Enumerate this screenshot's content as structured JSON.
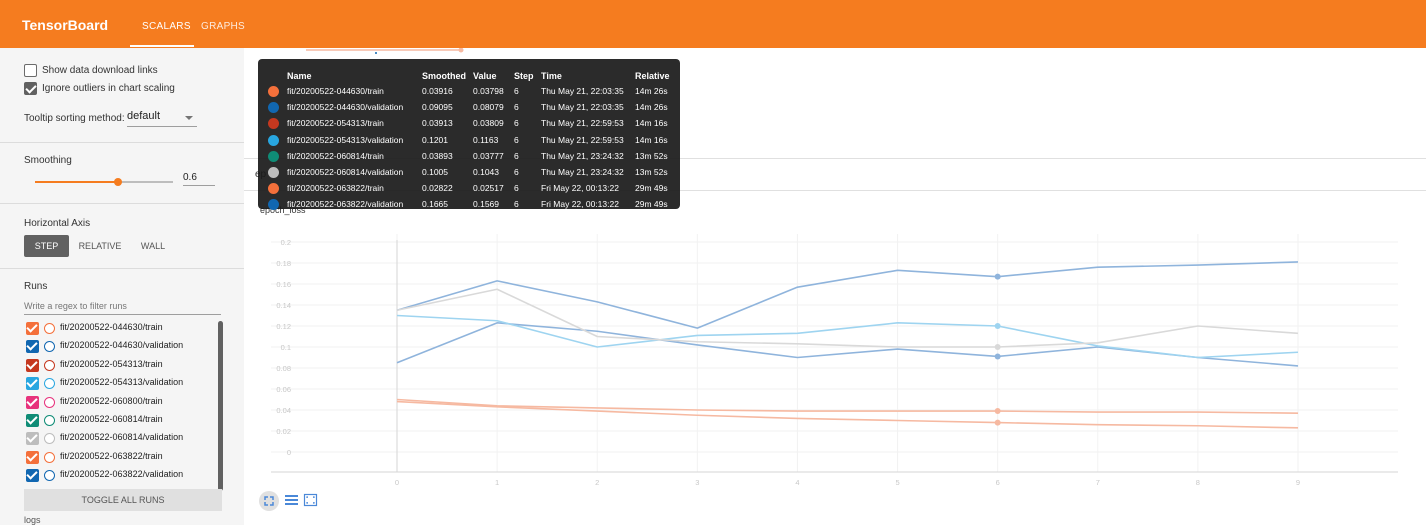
{
  "header": {
    "brand": "TensorBoard",
    "tabs": [
      {
        "label": "SCALARS",
        "active": true
      },
      {
        "label": "GRAPHS",
        "active": false
      }
    ],
    "color": "#f57c1f"
  },
  "sidebar": {
    "show_download": {
      "label": "Show data download links",
      "checked": false
    },
    "ignore_outliers": {
      "label": "Ignore outliers in chart scaling",
      "checked": true
    },
    "tooltip_sort": {
      "label": "Tooltip sorting method:",
      "value": "default"
    },
    "smoothing": {
      "title": "Smoothing",
      "value": "0.6",
      "fraction": 0.6
    },
    "horizontal_axis": {
      "title": "Horizontal Axis",
      "options": [
        "STEP",
        "RELATIVE",
        "WALL"
      ],
      "selected": "STEP"
    },
    "runs": {
      "title": "Runs",
      "filter_placeholder": "Write a regex to filter runs",
      "items": [
        {
          "name": "fit/20200522-044630/train",
          "color": "#f4703b"
        },
        {
          "name": "fit/20200522-044630/validation",
          "color": "#1167b1"
        },
        {
          "name": "fit/20200522-054313/train",
          "color": "#c5381f"
        },
        {
          "name": "fit/20200522-054313/validation",
          "color": "#28a6e0"
        },
        {
          "name": "fit/20200522-060800/train",
          "color": "#e7327c"
        },
        {
          "name": "fit/20200522-060814/train",
          "color": "#0f8c76"
        },
        {
          "name": "fit/20200522-060814/validation",
          "color": "#bdbdbd"
        },
        {
          "name": "fit/20200522-063822/train",
          "color": "#f4703b"
        },
        {
          "name": "fit/20200522-063822/validation",
          "color": "#1167b1"
        }
      ],
      "toggle_label": "TOGGLE ALL RUNS",
      "logs_label": "logs"
    }
  },
  "main": {
    "group_label": "ep",
    "card_title": "epoch_loss"
  },
  "tooltip": {
    "headers": [
      "Name",
      "Smoothed",
      "Value",
      "Step",
      "Time",
      "Relative"
    ],
    "rows": [
      {
        "color": "#f4703b",
        "name": "fit/20200522-044630/train",
        "smoothed": "0.03916",
        "value": "0.03798",
        "step": "6",
        "time": "Thu May 21, 22:03:35",
        "relative": "14m 26s"
      },
      {
        "color": "#1167b1",
        "name": "fit/20200522-044630/validation",
        "smoothed": "0.09095",
        "value": "0.08079",
        "step": "6",
        "time": "Thu May 21, 22:03:35",
        "relative": "14m 26s"
      },
      {
        "color": "#c5381f",
        "name": "fit/20200522-054313/train",
        "smoothed": "0.03913",
        "value": "0.03809",
        "step": "6",
        "time": "Thu May 21, 22:59:53",
        "relative": "14m 16s"
      },
      {
        "color": "#28a6e0",
        "name": "fit/20200522-054313/validation",
        "smoothed": "0.1201",
        "value": "0.1163",
        "step": "6",
        "time": "Thu May 21, 22:59:53",
        "relative": "14m 16s"
      },
      {
        "color": "#0f8c76",
        "name": "fit/20200522-060814/train",
        "smoothed": "0.03893",
        "value": "0.03777",
        "step": "6",
        "time": "Thu May 21, 23:24:32",
        "relative": "13m 52s"
      },
      {
        "color": "#bdbdbd",
        "name": "fit/20200522-060814/validation",
        "smoothed": "0.1005",
        "value": "0.1043",
        "step": "6",
        "time": "Thu May 21, 23:24:32",
        "relative": "13m 52s"
      },
      {
        "color": "#f4703b",
        "name": "fit/20200522-063822/train",
        "smoothed": "0.02822",
        "value": "0.02517",
        "step": "6",
        "time": "Fri May 22, 00:13:22",
        "relative": "29m 49s"
      },
      {
        "color": "#1167b1",
        "name": "fit/20200522-063822/validation",
        "smoothed": "0.1665",
        "value": "0.1569",
        "step": "6",
        "time": "Fri May 22, 00:13:22",
        "relative": "29m 49s"
      }
    ]
  },
  "chart_data": {
    "type": "line",
    "title": "epoch_loss",
    "x": [
      0,
      1,
      2,
      3,
      4,
      5,
      6,
      7,
      8,
      9
    ],
    "xlim": [
      0,
      9
    ],
    "ylim": [
      0,
      0.2
    ],
    "yticks": [
      "0.2",
      "0.18",
      "0.16",
      "0.14",
      "0.12",
      "0.1",
      "0.08",
      "0.06",
      "0.04",
      "0.02",
      "0"
    ],
    "xticks": [
      "0",
      "1",
      "2",
      "3",
      "4",
      "5",
      "6",
      "7",
      "8",
      "9"
    ],
    "grid": true,
    "series": [
      {
        "name": "fit/20200522-063822/validation",
        "color": "#8fb4dc",
        "values": [
          0.135,
          0.163,
          0.143,
          0.118,
          0.157,
          0.173,
          0.167,
          0.176,
          0.178,
          0.181
        ]
      },
      {
        "name": "fit/20200522-044630/validation",
        "color": "#8fb4dc",
        "values": [
          0.085,
          0.123,
          0.115,
          0.102,
          0.09,
          0.098,
          0.091,
          0.1,
          0.09,
          0.082
        ]
      },
      {
        "name": "fit/20200522-054313/validation",
        "color": "#9ed4f0",
        "values": [
          0.13,
          0.125,
          0.1,
          0.111,
          0.113,
          0.123,
          0.12,
          0.101,
          0.09,
          0.095
        ]
      },
      {
        "name": "fit/20200522-060814/validation",
        "color": "#d9d9d9",
        "values": [
          0.135,
          0.155,
          0.11,
          0.105,
          0.103,
          0.1,
          0.1,
          0.104,
          0.12,
          0.113
        ]
      },
      {
        "name": "fit/20200522-044630/train",
        "color": "#f6b9a1",
        "values": [
          0.05,
          0.044,
          0.042,
          0.04,
          0.039,
          0.039,
          0.039,
          0.038,
          0.038,
          0.037
        ]
      },
      {
        "name": "fit/20200522-063822/train",
        "color": "#f6b9a1",
        "values": [
          0.048,
          0.043,
          0.039,
          0.035,
          0.032,
          0.03,
          0.028,
          0.026,
          0.025,
          0.023
        ]
      }
    ],
    "hover_step": 6
  }
}
